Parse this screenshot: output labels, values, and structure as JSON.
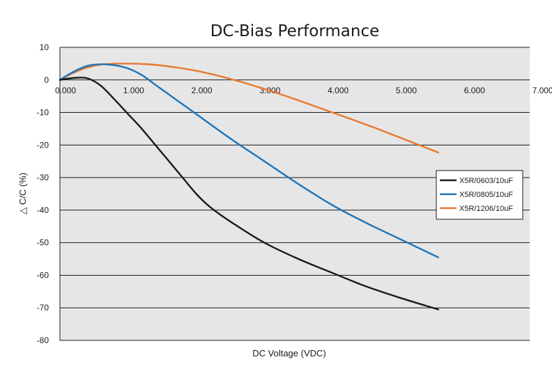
{
  "chart_data": {
    "type": "line",
    "title": "DC-Bias Performance",
    "xlabel": "DC Voltage (VDC)",
    "ylabel": "△ C/C (%)",
    "xlim": [
      0,
      7
    ],
    "ylim": [
      -80,
      10
    ],
    "x_ticks": [
      0,
      1,
      2,
      3,
      4,
      5,
      6,
      7
    ],
    "x_tick_labels": [
      "0.000",
      "1.000",
      "2.000",
      "3.000",
      "4.000",
      "5.000",
      "6.000",
      "7.000"
    ],
    "y_ticks": [
      10,
      0,
      -10,
      -20,
      -30,
      -40,
      -50,
      -60,
      -70,
      -80
    ],
    "y_tick_labels": [
      "10",
      "0",
      "-10",
      "-20",
      "-30",
      "-40",
      "-50",
      "-60",
      "-70",
      "-80"
    ],
    "grid": "horizontal",
    "legend_position": "right",
    "background_color": "#e6e6e6",
    "series": [
      {
        "name": "X5R/0603/10uF",
        "color": "#1a1a1a",
        "x": [
          0.0,
          0.2,
          0.4,
          0.6,
          0.8,
          1.0,
          1.2,
          1.4,
          1.6,
          1.8,
          2.0,
          2.2,
          2.5,
          3.0,
          3.5,
          4.0,
          4.5,
          5.0,
          5.55
        ],
        "y": [
          0.0,
          0.6,
          0.5,
          -1.8,
          -6.0,
          -10.5,
          -15.0,
          -20.0,
          -25.0,
          -30.0,
          -35.0,
          -39.0,
          -43.5,
          -50.0,
          -55.0,
          -59.3,
          -63.5,
          -67.0,
          -70.5
        ]
      },
      {
        "name": "X5R/0805/10uF",
        "color": "#1b75bb",
        "x": [
          0.0,
          0.2,
          0.4,
          0.6,
          0.8,
          1.0,
          1.2,
          1.4,
          1.6,
          1.8,
          2.0,
          2.5,
          3.0,
          3.5,
          4.0,
          4.5,
          5.0,
          5.55
        ],
        "y": [
          0.0,
          2.5,
          4.3,
          4.8,
          4.5,
          3.5,
          1.5,
          -1.5,
          -4.5,
          -7.5,
          -10.5,
          -18.0,
          -25.0,
          -32.0,
          -38.5,
          -44.0,
          -49.0,
          -54.5
        ]
      },
      {
        "name": "X5R/1206/10uF",
        "color": "#e8772e",
        "x": [
          0.0,
          0.2,
          0.4,
          0.6,
          0.8,
          1.0,
          1.2,
          1.5,
          2.0,
          2.5,
          3.0,
          3.5,
          4.0,
          4.5,
          5.0,
          5.55
        ],
        "y": [
          0.0,
          2.2,
          3.8,
          4.7,
          5.0,
          5.0,
          4.9,
          4.4,
          2.8,
          0.3,
          -2.8,
          -6.3,
          -10.0,
          -13.8,
          -17.8,
          -22.3
        ]
      }
    ]
  }
}
